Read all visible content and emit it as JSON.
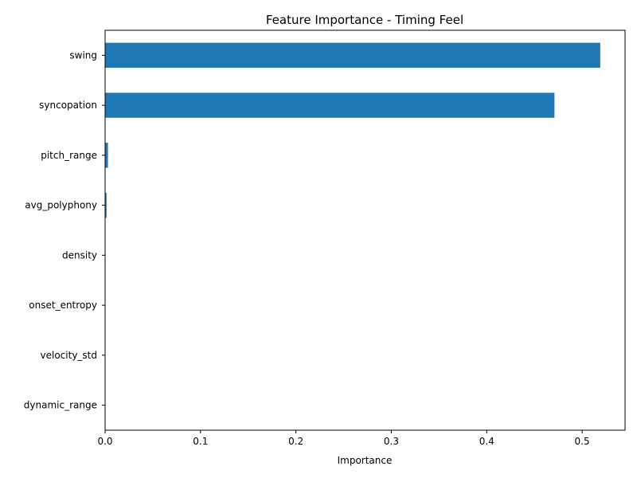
{
  "chart_data": {
    "type": "bar",
    "orientation": "horizontal",
    "title": "Feature Importance - Timing Feel",
    "xlabel": "Importance",
    "ylabel": "",
    "categories": [
      "swing",
      "syncopation",
      "pitch_range",
      "avg_polyphony",
      "density",
      "onset_entropy",
      "velocity_std",
      "dynamic_range"
    ],
    "values": [
      0.519,
      0.471,
      0.003,
      0.0015,
      0.0,
      0.0,
      0.0,
      0.0
    ],
    "xlim": [
      0,
      0.545
    ],
    "xticks": [
      0.0,
      0.1,
      0.2,
      0.3,
      0.4,
      0.5
    ],
    "xtick_labels": [
      "0.0",
      "0.1",
      "0.2",
      "0.3",
      "0.4",
      "0.5"
    ],
    "grid": false,
    "bar_color": "#1f77b4"
  }
}
